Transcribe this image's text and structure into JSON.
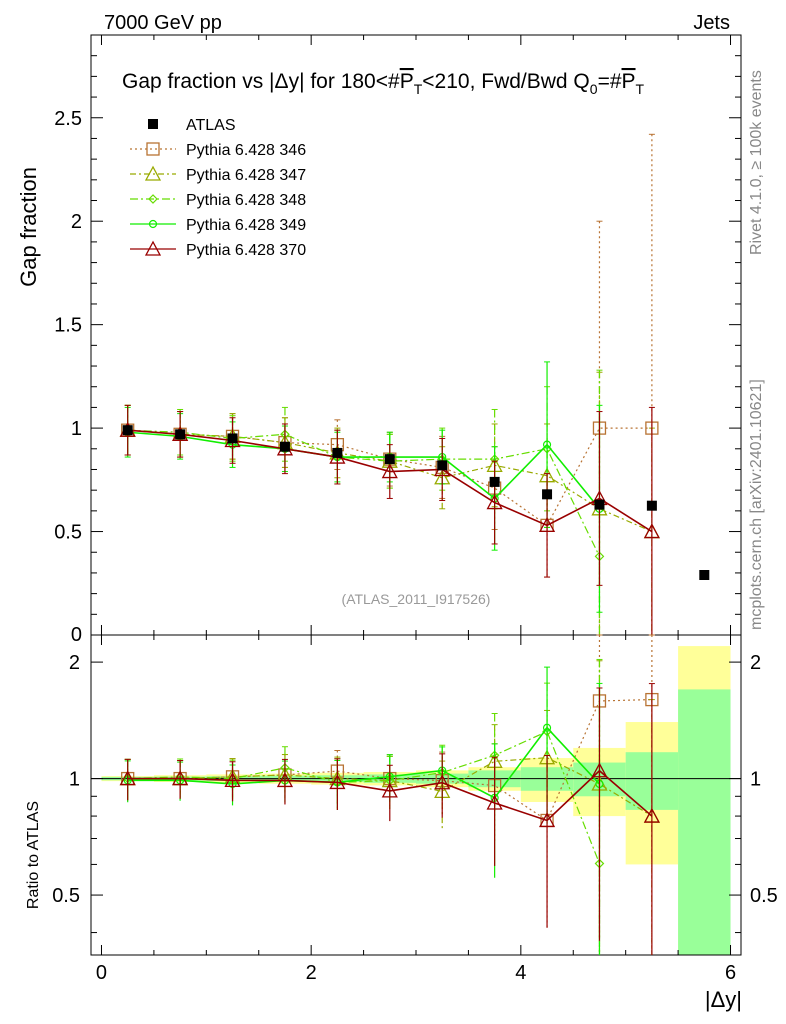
{
  "header": {
    "energy_label": "7000 GeV pp",
    "process_label": "Jets"
  },
  "side": {
    "rivet_label": "Rivet 4.1.0, ≥ 100k events",
    "mcplots_label": "mcplots.cern.ch [arXiv:2401.10621]"
  },
  "chart_data": {
    "type": "scatter",
    "title": "Gap fraction vs |Δy| for 180<#P̅T<210, Fwd/Bwd Q0=#P̅T",
    "title_parts": {
      "a": "Gap fraction vs |",
      "delta": "Δ",
      "b": "y| for 180<#",
      "p1": "P",
      "t1": "T",
      "c": "<210, Fwd/Bwd Q",
      "zero": "0",
      "d": "=#",
      "p2": "P",
      "t2": "T"
    },
    "analysis_label": "(ATLAS_2011_I917526)",
    "xlabel": "|Δy|",
    "ylabel": "Gap fraction",
    "ratio_ylabel": "Ratio to ATLAS",
    "xlim": [
      -0.1,
      6.1
    ],
    "ylim": [
      0,
      2.9
    ],
    "ratio_ylim": [
      0.35,
      2.35
    ],
    "x_ticks": [
      "0",
      "2",
      "4",
      "6"
    ],
    "y_ticks": [
      "0.5",
      "1",
      "1.5",
      "2",
      "2.5"
    ],
    "y_zero_tick": "0",
    "ratio_ticks": [
      "0.5",
      "1",
      "2"
    ],
    "x": [
      0.25,
      0.75,
      1.25,
      1.75,
      2.25,
      2.75,
      3.25,
      3.75,
      4.25,
      4.75,
      5.25,
      5.75
    ],
    "data": {
      "name": "ATLAS",
      "values": [
        0.99,
        0.97,
        0.95,
        0.91,
        0.88,
        0.85,
        0.82,
        0.74,
        0.68,
        0.63,
        0.625,
        0.29
      ],
      "errors": [
        0.005,
        0.005,
        0.006,
        0.007,
        0.008,
        0.01,
        0.012,
        0.02,
        0.025,
        0.03,
        0.03,
        0.02
      ]
    },
    "ratio_band_inner": [
      0.01,
      0.012,
      0.014,
      0.018,
      0.02,
      0.025,
      0.03,
      0.05,
      0.07,
      0.1,
      0.17,
      0.7
    ],
    "ratio_band_outer": [
      0.015,
      0.02,
      0.025,
      0.03,
      0.035,
      0.04,
      0.05,
      0.07,
      0.13,
      0.2,
      0.4,
      1.2
    ],
    "series": [
      {
        "name": "Pythia 6.428 346",
        "color": "#B87333",
        "marker": "square",
        "dash": "2,3",
        "values": [
          0.99,
          0.97,
          0.96,
          0.93,
          0.92,
          0.85,
          0.81,
          0.71,
          0.53,
          1.0,
          1.0,
          null
        ],
        "errors": [
          0.12,
          0.11,
          0.11,
          0.12,
          0.12,
          0.13,
          0.15,
          0.2,
          0.25,
          1.0,
          1.42,
          null
        ]
      },
      {
        "name": "Pythia 6.428 347",
        "color": "#99AA00",
        "marker": "triangle",
        "dash": "6,3,2,3",
        "values": [
          0.99,
          0.97,
          0.96,
          0.93,
          0.88,
          0.84,
          0.76,
          0.82,
          0.77,
          0.61,
          0.5,
          null
        ],
        "errors": [
          0.12,
          0.11,
          0.11,
          0.12,
          0.12,
          0.13,
          0.15,
          0.2,
          0.25,
          0.66,
          0.5,
          null
        ]
      },
      {
        "name": "Pythia 6.428 348",
        "color": "#66DD00",
        "marker": "diamond",
        "dash": "8,3,2,3",
        "values": [
          0.99,
          0.98,
          0.95,
          0.97,
          0.86,
          0.84,
          0.85,
          0.85,
          0.9,
          0.38,
          null,
          null
        ],
        "errors": [
          0.12,
          0.11,
          0.11,
          0.13,
          0.13,
          0.13,
          0.15,
          0.24,
          0.3,
          0.9,
          null,
          null
        ]
      },
      {
        "name": "Pythia 6.428 349",
        "color": "#11EE00",
        "marker": "circle",
        "dash": "",
        "values": [
          0.98,
          0.96,
          0.92,
          0.9,
          0.86,
          0.86,
          0.86,
          0.66,
          0.92,
          0.61,
          null,
          null
        ],
        "errors": [
          0.12,
          0.11,
          0.11,
          0.11,
          0.12,
          0.12,
          0.13,
          0.25,
          0.4,
          0.5,
          null,
          null
        ]
      },
      {
        "name": "Pythia 6.428 370",
        "color": "#990000",
        "marker": "triangle",
        "dash": "",
        "values": [
          0.99,
          0.97,
          0.94,
          0.9,
          0.86,
          0.79,
          0.8,
          0.64,
          0.53,
          0.66,
          0.5,
          null
        ],
        "errors": [
          0.12,
          0.11,
          0.11,
          0.12,
          0.13,
          0.13,
          0.15,
          0.2,
          0.25,
          0.42,
          0.6,
          null
        ]
      }
    ]
  }
}
